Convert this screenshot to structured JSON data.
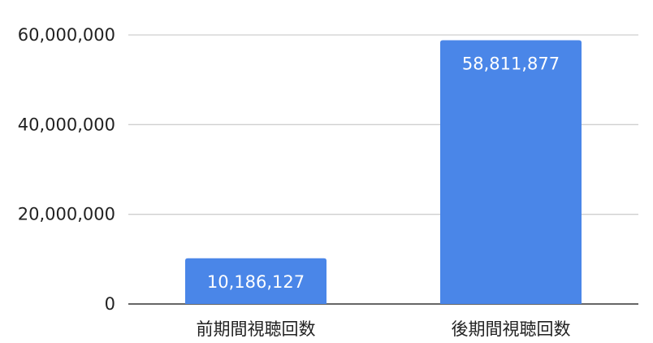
{
  "chart_data": {
    "type": "bar",
    "categories": [
      "前期間視聴回数",
      "後期間視聴回数"
    ],
    "values": [
      10186127,
      58811877
    ],
    "data_labels": [
      "10,186,127",
      "58,811,877"
    ],
    "ylim": [
      0,
      60000000
    ],
    "yticks": [
      0,
      20000000,
      40000000,
      60000000
    ],
    "ytick_labels": [
      "0",
      "20,000,000",
      "40,000,000",
      "60,000,000"
    ],
    "title": "",
    "xlabel": "",
    "ylabel": "",
    "grid": true,
    "legend": "none",
    "bar_color": "#4a86e8"
  }
}
